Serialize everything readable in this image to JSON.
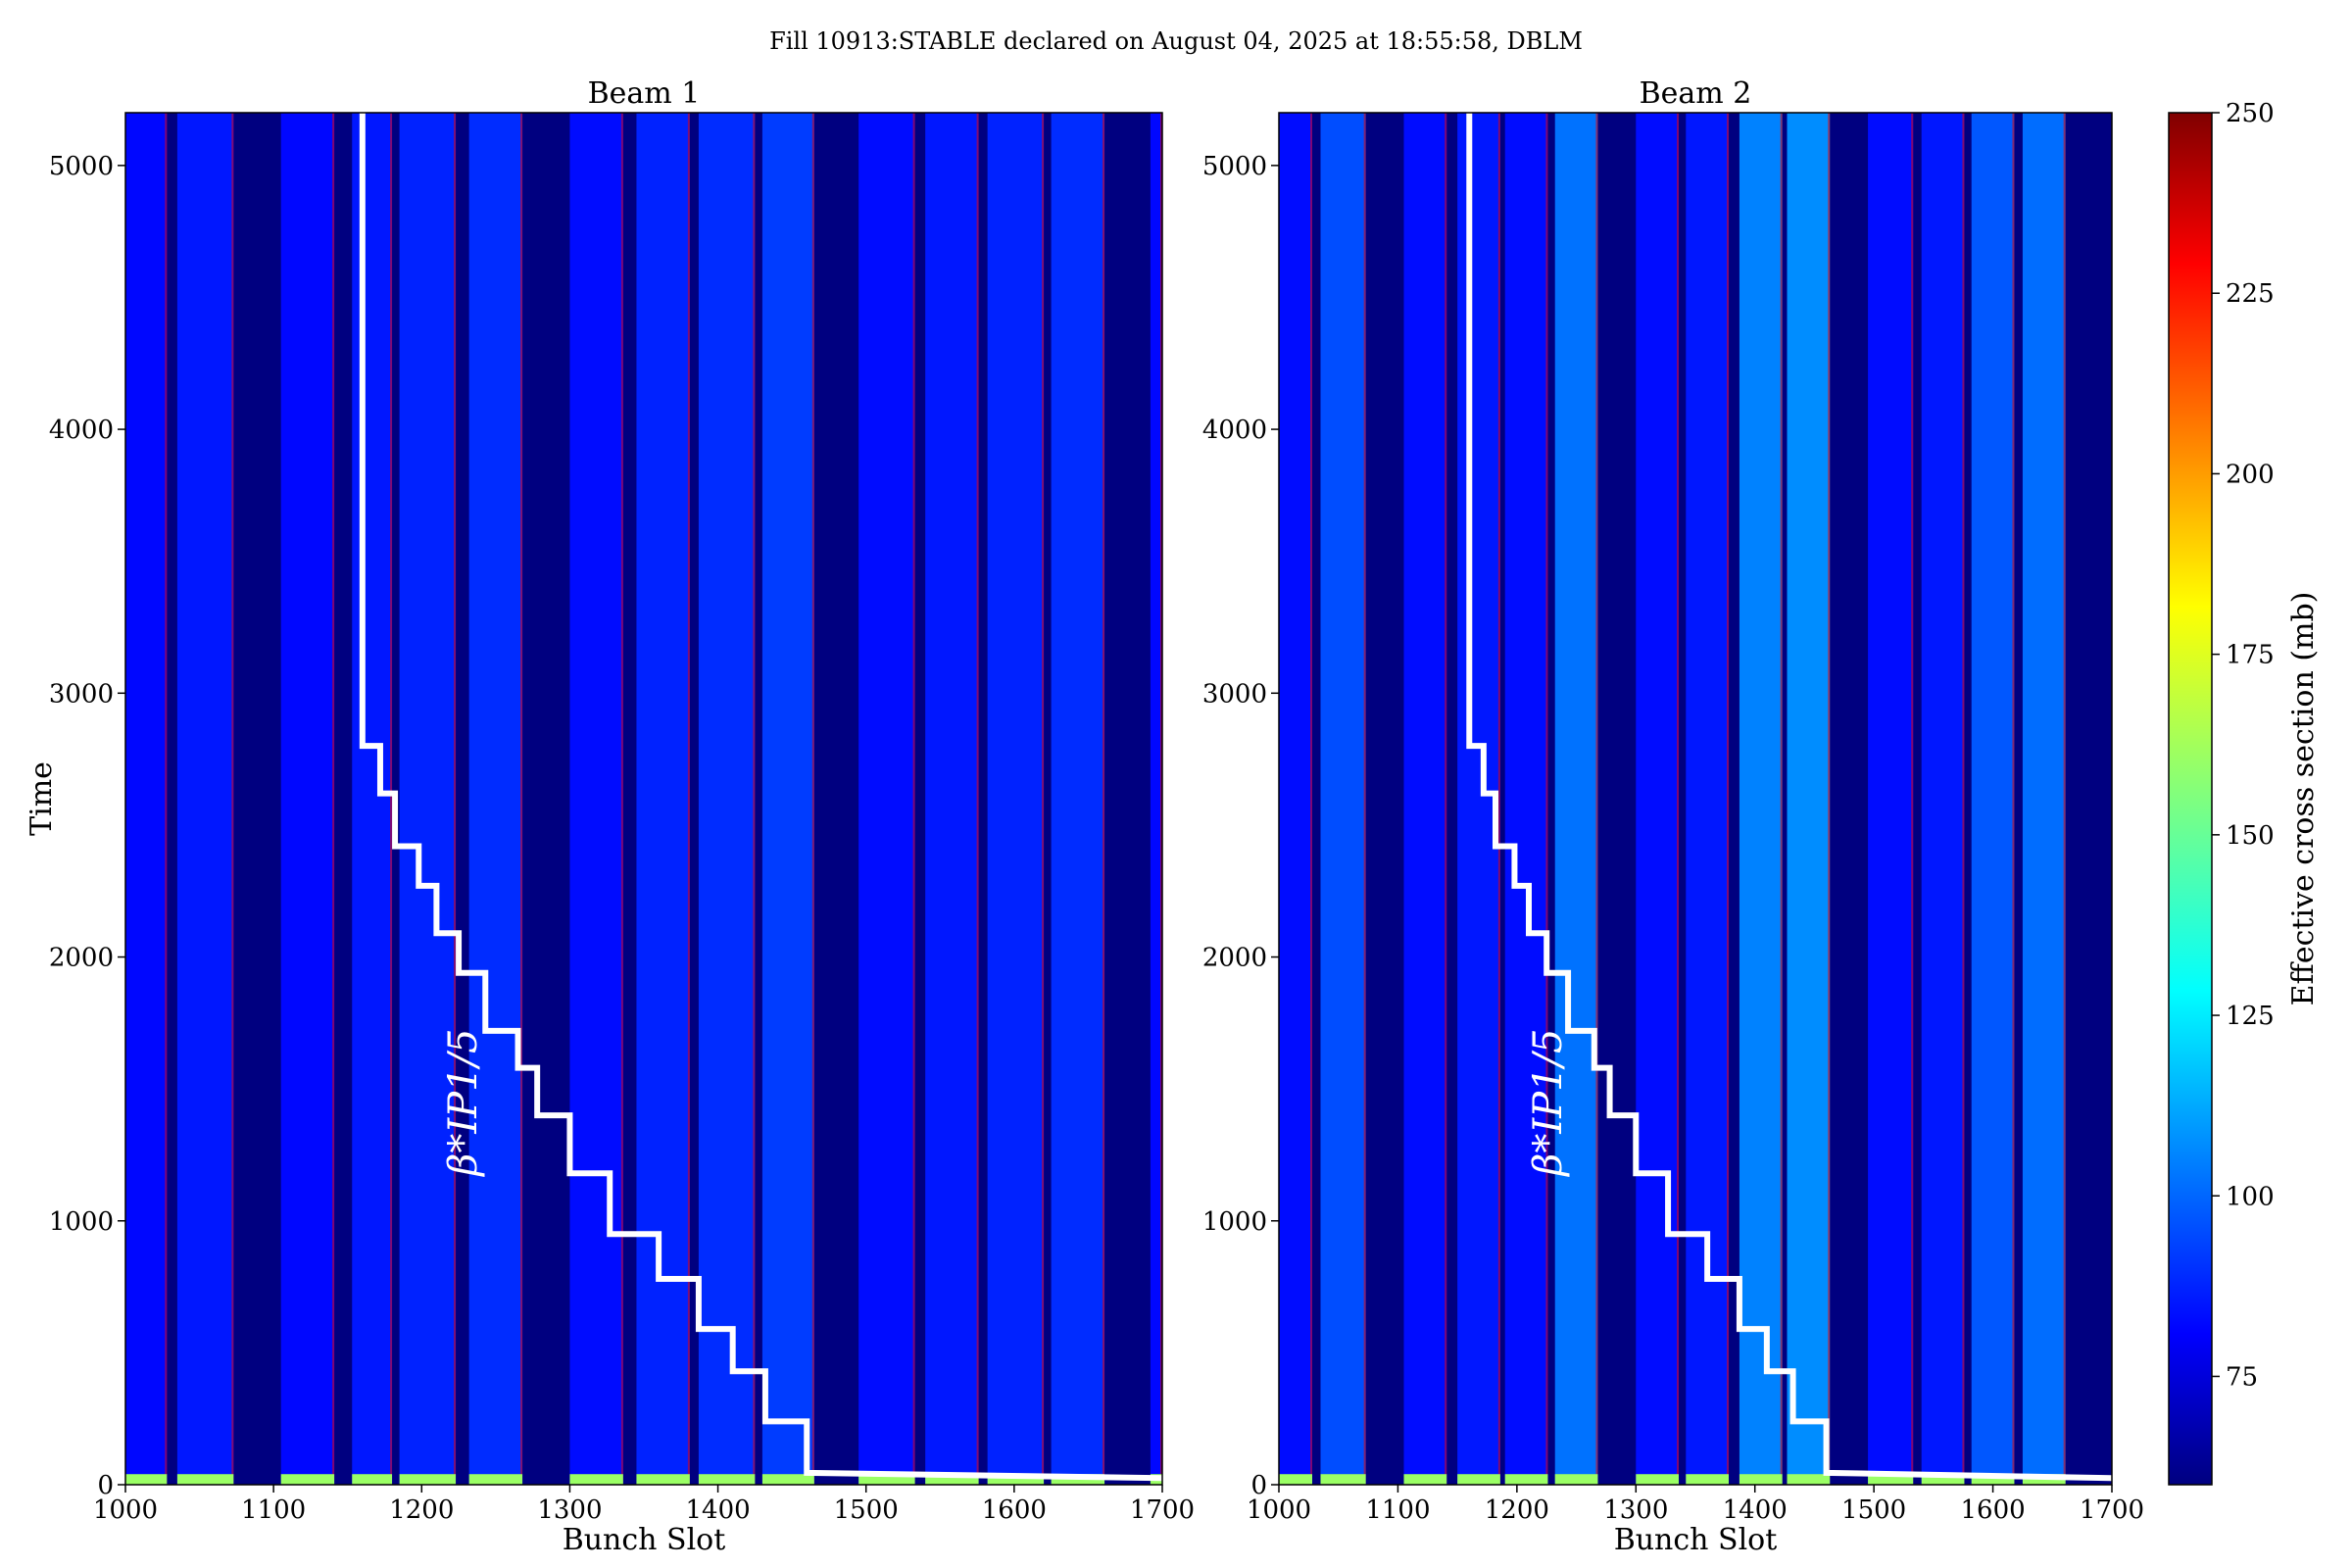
{
  "suptitle": "Fill 10913:STABLE declared on August 04, 2025 at 18:55:58, DBLM",
  "colorbar": {
    "label": "Effective cross section (mb)",
    "range": [
      60,
      250
    ],
    "ticks": [
      75,
      100,
      125,
      150,
      175,
      200,
      225,
      250
    ],
    "colormap": "jet"
  },
  "chart_data": [
    {
      "type": "heatmap",
      "title": "Beam 1",
      "xlabel": "Bunch Slot",
      "ylabel": "Time",
      "xlim": [
        1000,
        1700
      ],
      "ylim": [
        0,
        5200
      ],
      "xticks": [
        1000,
        1100,
        1200,
        1300,
        1400,
        1500,
        1600,
        1700
      ],
      "yticks": [
        0,
        1000,
        2000,
        3000,
        4000,
        5000
      ],
      "trains": [
        {
          "start": 1000,
          "end": 1028,
          "value": 85
        },
        {
          "start": 1035,
          "end": 1073,
          "value": 88
        },
        {
          "start": 1105,
          "end": 1141,
          "value": 85
        },
        {
          "start": 1153,
          "end": 1180,
          "value": 88
        },
        {
          "start": 1185,
          "end": 1223,
          "value": 90
        },
        {
          "start": 1232,
          "end": 1268,
          "value": 92
        },
        {
          "start": 1300,
          "end": 1336,
          "value": 86
        },
        {
          "start": 1345,
          "end": 1381,
          "value": 90
        },
        {
          "start": 1387,
          "end": 1425,
          "value": 92
        },
        {
          "start": 1430,
          "end": 1465,
          "value": 95
        },
        {
          "start": 1495,
          "end": 1533,
          "value": 86
        },
        {
          "start": 1540,
          "end": 1576,
          "value": 88
        },
        {
          "start": 1582,
          "end": 1620,
          "value": 90
        },
        {
          "start": 1625,
          "end": 1661,
          "value": 92
        },
        {
          "start": 1692,
          "end": 1700,
          "value": 85
        }
      ],
      "background_value": 60,
      "beta_star_curve": {
        "label": "β*IP1/5",
        "x": [
          1160,
          1160,
          1172,
          1172,
          1182,
          1182,
          1198,
          1198,
          1210,
          1210,
          1225,
          1225,
          1243,
          1243,
          1265,
          1265,
          1278,
          1278,
          1300,
          1300,
          1327,
          1327,
          1360,
          1360,
          1387,
          1387,
          1410,
          1410,
          1432,
          1432,
          1460,
          1460,
          1700
        ],
        "y": [
          5200,
          2800,
          2800,
          2620,
          2620,
          2420,
          2420,
          2270,
          2270,
          2090,
          2090,
          1940,
          1940,
          1720,
          1720,
          1580,
          1580,
          1400,
          1400,
          1180,
          1180,
          950,
          950,
          780,
          780,
          590,
          590,
          430,
          430,
          240,
          240,
          45,
          25
        ]
      }
    },
    {
      "type": "heatmap",
      "title": "Beam 2",
      "xlabel": "Bunch Slot",
      "ylabel": "",
      "xlim": [
        1000,
        1700
      ],
      "ylim": [
        0,
        5200
      ],
      "xticks": [
        1000,
        1100,
        1200,
        1300,
        1400,
        1500,
        1600,
        1700
      ],
      "yticks": [
        0,
        1000,
        2000,
        3000,
        4000,
        5000
      ],
      "trains": [
        {
          "start": 1000,
          "end": 1028,
          "value": 86
        },
        {
          "start": 1035,
          "end": 1073,
          "value": 98
        },
        {
          "start": 1105,
          "end": 1141,
          "value": 86
        },
        {
          "start": 1150,
          "end": 1186,
          "value": 88
        },
        {
          "start": 1190,
          "end": 1226,
          "value": 86
        },
        {
          "start": 1232,
          "end": 1268,
          "value": 105
        },
        {
          "start": 1300,
          "end": 1336,
          "value": 86
        },
        {
          "start": 1342,
          "end": 1378,
          "value": 88
        },
        {
          "start": 1387,
          "end": 1423,
          "value": 108
        },
        {
          "start": 1427,
          "end": 1463,
          "value": 110
        },
        {
          "start": 1495,
          "end": 1533,
          "value": 86
        },
        {
          "start": 1540,
          "end": 1576,
          "value": 88
        },
        {
          "start": 1582,
          "end": 1618,
          "value": 100
        },
        {
          "start": 1625,
          "end": 1661,
          "value": 104
        }
      ],
      "background_value": 60,
      "beta_star_curve": {
        "label": "β*IP1/5",
        "x": [
          1160,
          1160,
          1172,
          1172,
          1182,
          1182,
          1198,
          1198,
          1210,
          1210,
          1225,
          1225,
          1243,
          1243,
          1265,
          1265,
          1278,
          1278,
          1300,
          1300,
          1327,
          1327,
          1360,
          1360,
          1387,
          1387,
          1410,
          1410,
          1432,
          1432,
          1460,
          1460,
          1700
        ],
        "y": [
          5200,
          2800,
          2800,
          2620,
          2620,
          2420,
          2420,
          2270,
          2270,
          2090,
          2090,
          1940,
          1940,
          1720,
          1720,
          1580,
          1580,
          1400,
          1400,
          1180,
          1180,
          950,
          950,
          780,
          780,
          590,
          590,
          430,
          430,
          240,
          240,
          45,
          25
        ]
      }
    }
  ]
}
